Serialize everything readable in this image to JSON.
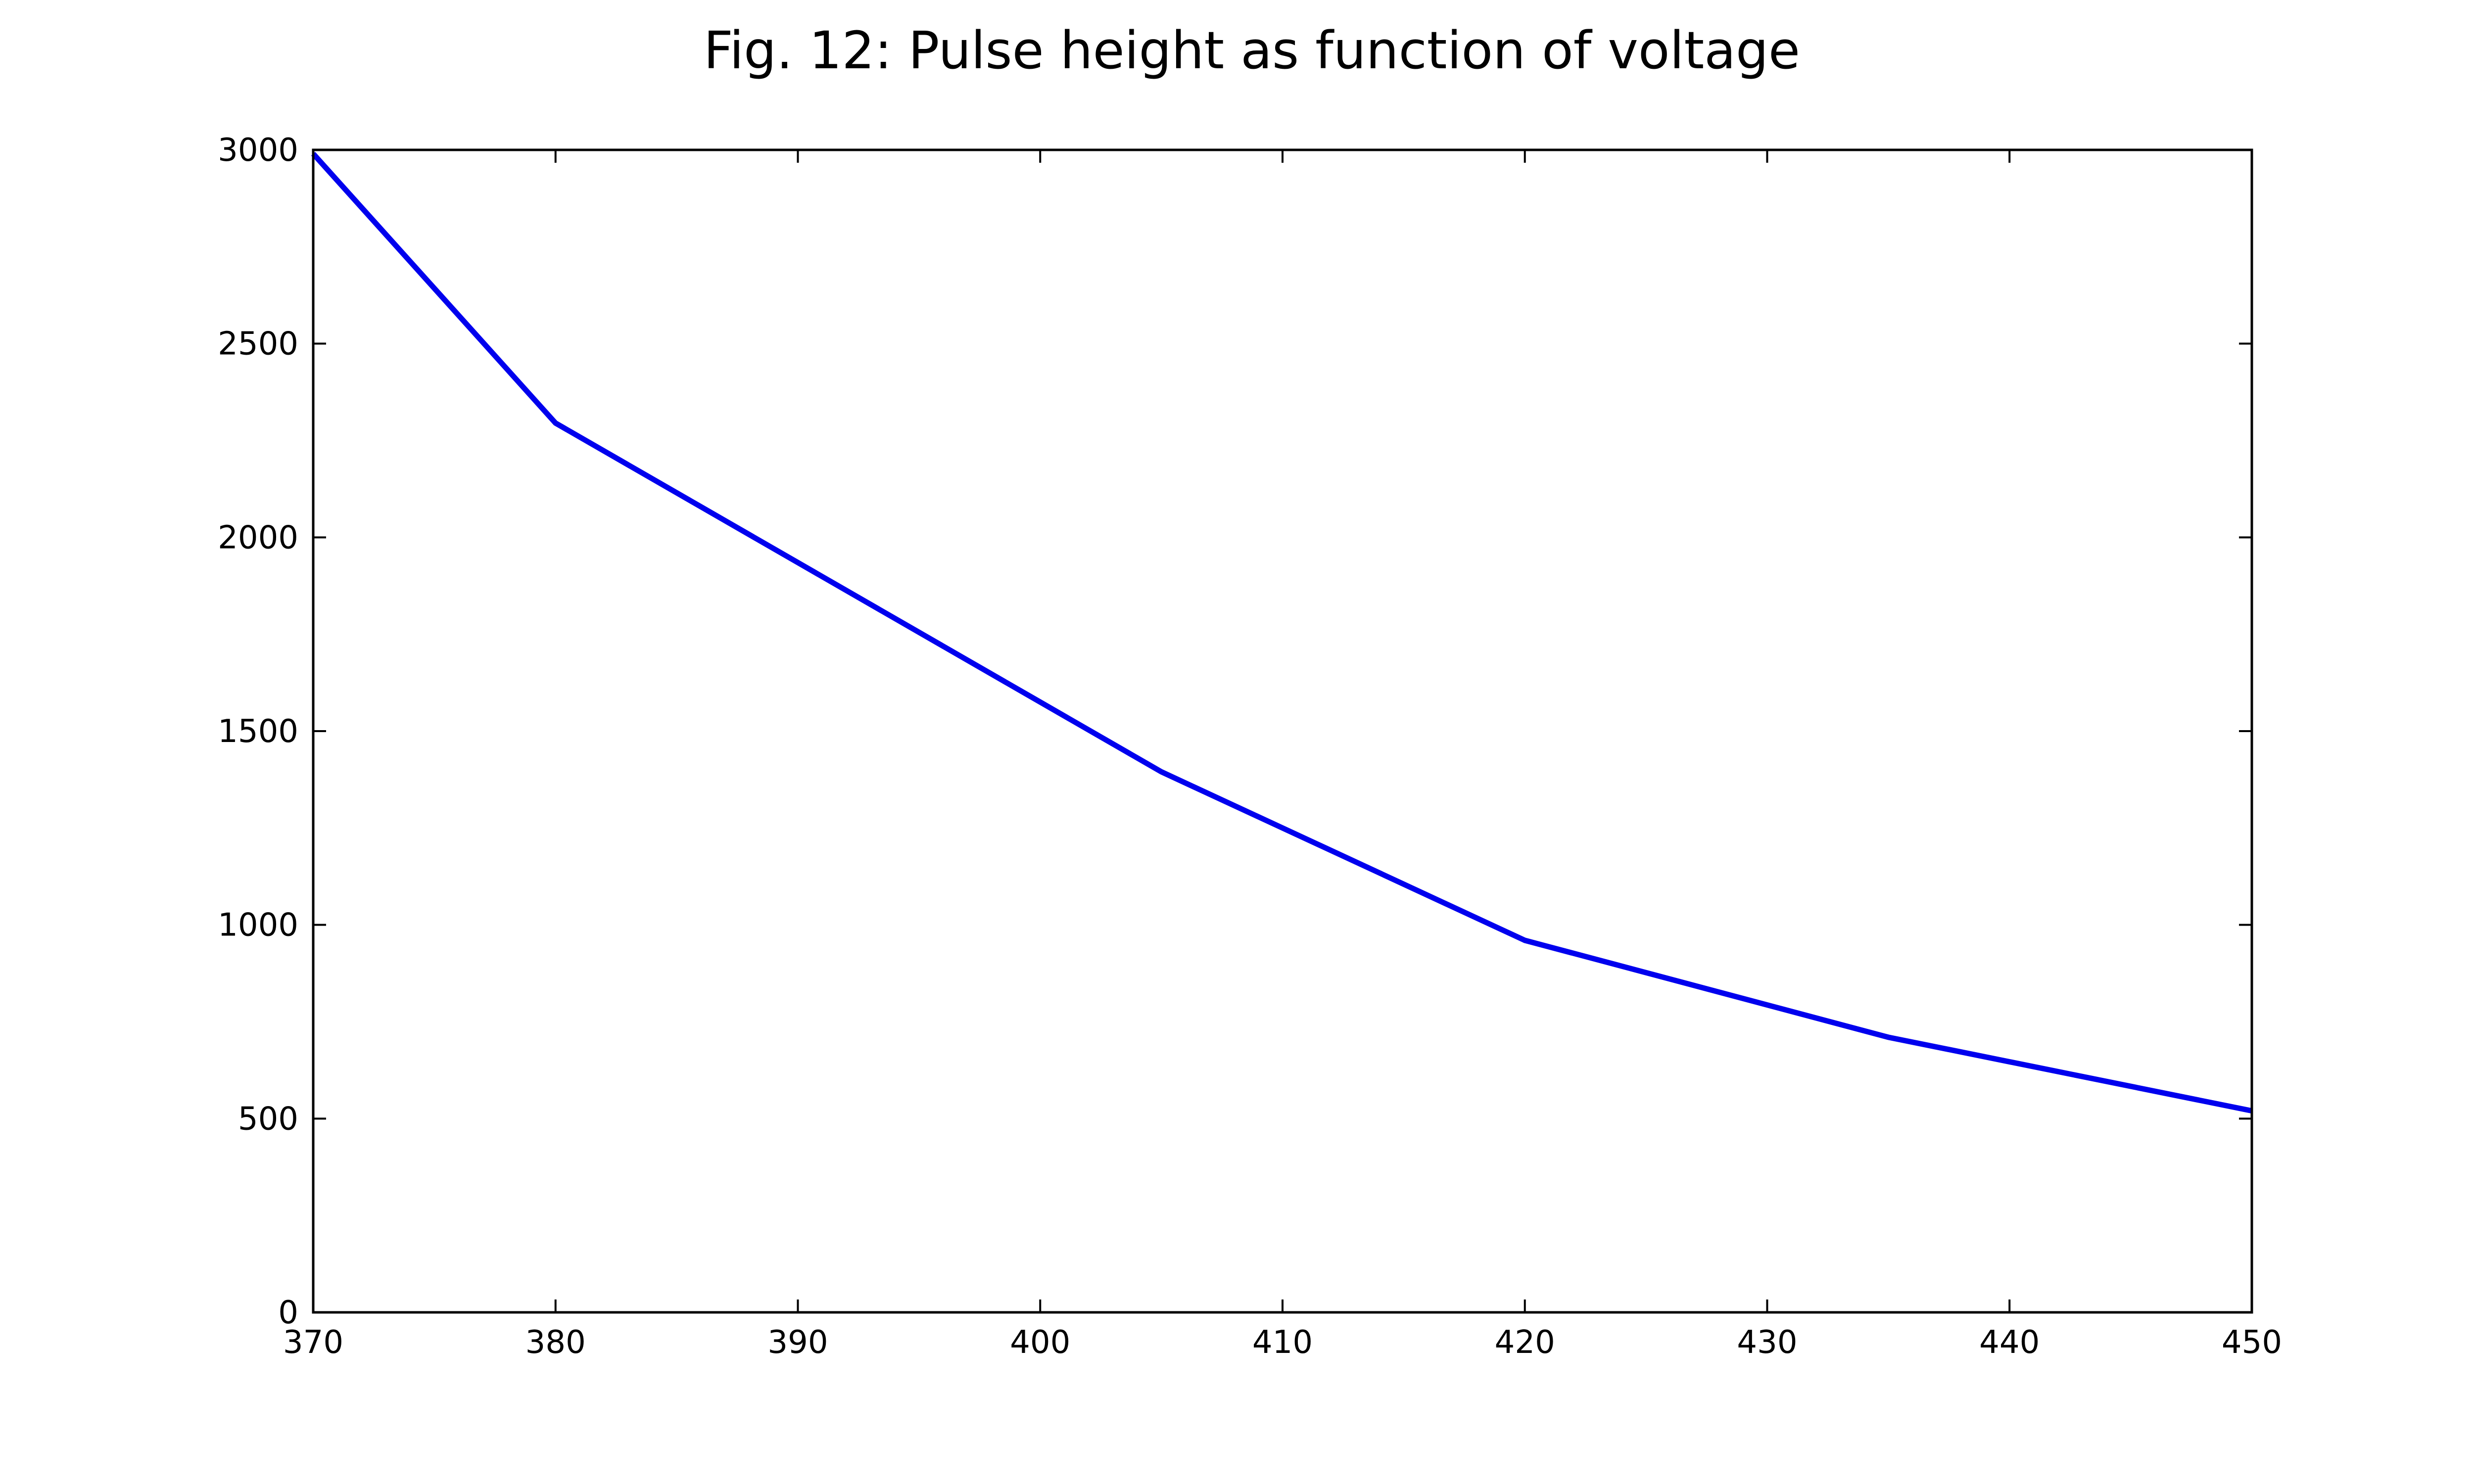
{
  "chart_data": {
    "type": "line",
    "title": "Fig. 12: Pulse height as function of voltage",
    "xlabel": "",
    "ylabel": "",
    "xlim": [
      370,
      450
    ],
    "ylim": [
      0,
      3000
    ],
    "x_ticks": [
      370,
      380,
      390,
      400,
      410,
      420,
      430,
      440,
      450
    ],
    "y_ticks": [
      0,
      500,
      1000,
      1500,
      2000,
      2500,
      3000
    ],
    "grid": false,
    "series": [
      {
        "color": "#0000ee",
        "x": [
          370,
          380,
          405,
          420,
          435,
          450
        ],
        "y": [
          2990,
          2295,
          1395,
          960,
          710,
          520
        ]
      }
    ]
  }
}
